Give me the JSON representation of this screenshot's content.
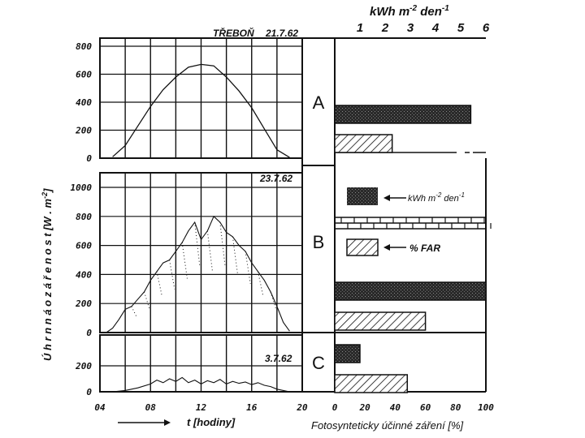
{
  "figure": {
    "station_title": "TŘEBOŇ",
    "ylabel": "Ú h r n n á   o z á ř e n o s t   [W . m",
    "ylabel_exp": "-2",
    "ylabel_end": "]",
    "xlabel_left": "t [hodiny]",
    "xlabel_right": "Fotosynteticky účinné záření [%]",
    "top_axis_label": "kWh m",
    "top_axis_exp1": "-2",
    "top_axis_mid": " den",
    "top_axis_exp2": "-1",
    "legend_energy": "kWh m",
    "legend_energy_exp1": "-2",
    "legend_energy_mid": " den",
    "legend_energy_exp2": "-1",
    "legend_far": "% FAR",
    "colors": {
      "ink": "#111111",
      "paper": "#ffffff"
    }
  },
  "chart_data": [
    {
      "type": "line",
      "panel": "A",
      "date": "21.7.62",
      "ylim": [
        0,
        800
      ],
      "yticks": [
        "0",
        "200",
        "400",
        "600",
        "800"
      ],
      "xlim": [
        4,
        20
      ],
      "x": [
        5,
        6,
        7,
        8,
        9,
        10,
        11,
        12,
        13,
        14,
        15,
        16,
        17,
        18,
        19
      ],
      "y": [
        10,
        90,
        230,
        370,
        490,
        580,
        650,
        670,
        660,
        580,
        480,
        360,
        210,
        60,
        5
      ]
    },
    {
      "type": "line",
      "panel": "B",
      "date": "23.7.62",
      "ylim": [
        0,
        1000
      ],
      "yticks": [
        "0",
        "200",
        "400",
        "600",
        "800",
        "1000"
      ],
      "xlim": [
        4,
        20
      ],
      "x": [
        4.5,
        5,
        5.5,
        6,
        6.5,
        7,
        7.5,
        8,
        8.5,
        9,
        9.5,
        10,
        10.5,
        11,
        11.5,
        12,
        12.5,
        13,
        13.5,
        14,
        14.5,
        15,
        15.5,
        16,
        16.5,
        17,
        17.5,
        18,
        18.5,
        19
      ],
      "y": [
        0,
        30,
        90,
        160,
        180,
        230,
        280,
        360,
        420,
        480,
        500,
        560,
        620,
        700,
        760,
        640,
        700,
        800,
        760,
        690,
        660,
        600,
        560,
        480,
        420,
        360,
        280,
        180,
        70,
        10
      ]
    },
    {
      "type": "line",
      "panel": "C",
      "date": "3.7.62",
      "ylim": [
        0,
        200
      ],
      "yticks": [
        "0",
        "200"
      ],
      "xlim": [
        4,
        20
      ],
      "xticks": [
        "04",
        "08",
        "12",
        "16",
        "20"
      ],
      "x": [
        5,
        6,
        7,
        8,
        8.5,
        9,
        9.5,
        10,
        10.5,
        11,
        11.5,
        12,
        12.5,
        13,
        13.5,
        14,
        14.5,
        15,
        15.5,
        16,
        16.5,
        17,
        17.5,
        18,
        19
      ],
      "y": [
        0,
        10,
        30,
        60,
        90,
        70,
        100,
        80,
        110,
        70,
        90,
        60,
        85,
        70,
        95,
        60,
        80,
        65,
        75,
        55,
        70,
        50,
        40,
        20,
        0
      ]
    },
    {
      "type": "bar",
      "orientation": "horizontal",
      "panels": [
        "A",
        "B",
        "C"
      ],
      "top_axis": {
        "lim": [
          0,
          6
        ],
        "ticks": [
          "1",
          "2",
          "3",
          "4",
          "5",
          "6"
        ]
      },
      "bottom_axis": {
        "lim": [
          0,
          100
        ],
        "ticks": [
          "0",
          "20",
          "40",
          "60",
          "80",
          "100"
        ]
      },
      "bars": [
        {
          "panel": "A",
          "kind": "energy",
          "value": 5.4
        },
        {
          "panel": "A",
          "kind": "far",
          "value": 38
        },
        {
          "panel": "B",
          "kind": "energy",
          "value": 6.0
        },
        {
          "panel": "B",
          "kind": "far",
          "value": 60
        },
        {
          "panel": "C",
          "kind": "energy",
          "value": 1.0
        },
        {
          "panel": "C",
          "kind": "far",
          "value": 48
        }
      ]
    }
  ]
}
